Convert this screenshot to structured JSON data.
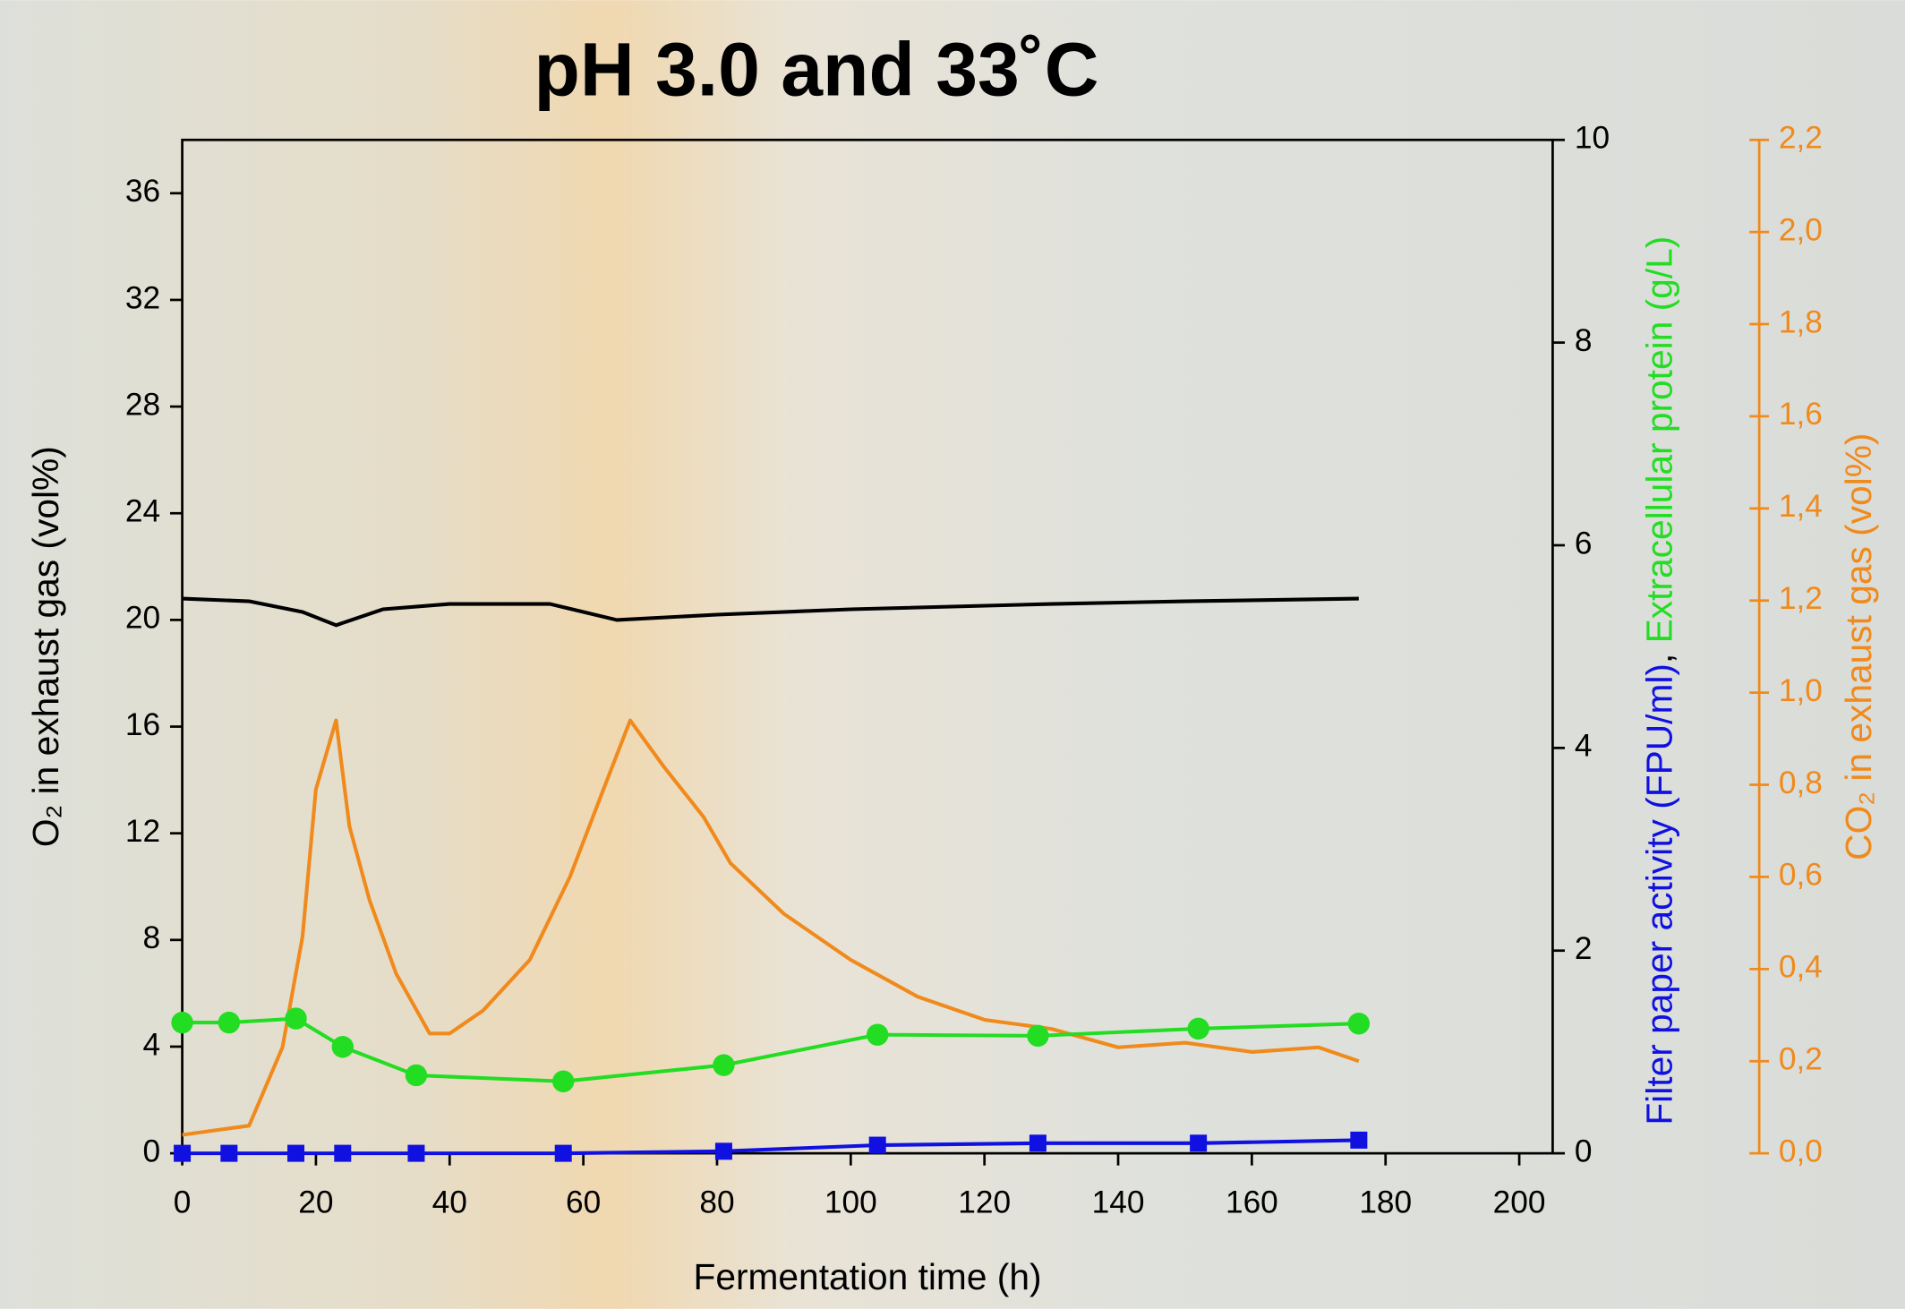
{
  "chart_data": {
    "type": "line",
    "title": "pH 3.0 and 33˚C",
    "x_label": "Fermentation time (h)",
    "y_label": "O₂ in exhaust gas (vol%)",
    "y2_label_parts": [
      {
        "text": "Filter paper activity (FPU/ml)",
        "color": "#1010e0"
      },
      {
        "text": ", ",
        "color": "#000000"
      },
      {
        "text": "Extracellular protein (g/L)",
        "color": "#22dd22"
      }
    ],
    "y3_label": "CO₂ in exhaust gas (vol%)",
    "y3_color": "#f08a1c",
    "xlim": [
      0,
      205
    ],
    "xticks": [
      0,
      20,
      40,
      60,
      80,
      100,
      120,
      140,
      160,
      180,
      200
    ],
    "ylim": [
      0,
      38
    ],
    "yticks": [
      0,
      4,
      8,
      12,
      16,
      20,
      24,
      28,
      32,
      36
    ],
    "y2lim": [
      0,
      10
    ],
    "y2ticks": [
      0,
      2,
      4,
      6,
      8,
      10
    ],
    "y3lim": [
      0,
      2.2
    ],
    "y3ticks": [
      {
        "value": 0,
        "label": "0,0"
      },
      {
        "value": 0.2,
        "label": "0,2"
      },
      {
        "value": 0.4,
        "label": "0,4"
      },
      {
        "value": 0.6,
        "label": "0,6"
      },
      {
        "value": 0.8,
        "label": "0,8"
      },
      {
        "value": 1.0,
        "label": "1,0"
      },
      {
        "value": 1.2,
        "label": "1,2"
      },
      {
        "value": 1.4,
        "label": "1,4"
      },
      {
        "value": 1.6,
        "label": "1,6"
      },
      {
        "value": 1.8,
        "label": "1,8"
      },
      {
        "value": 2.0,
        "label": "2,0"
      },
      {
        "value": 2.2,
        "label": "2,2"
      }
    ],
    "series": [
      {
        "name": "O2",
        "color": "#000000",
        "axis": "y",
        "marker": "none",
        "x": [
          0,
          10,
          18,
          23,
          30,
          40,
          55,
          65,
          80,
          100,
          130,
          150,
          176
        ],
        "values": [
          20.8,
          20.7,
          20.3,
          19.8,
          20.4,
          20.6,
          20.6,
          20.0,
          20.2,
          20.4,
          20.6,
          20.7,
          20.8
        ]
      },
      {
        "name": "CO2",
        "color": "#f08a1c",
        "axis": "y3",
        "marker": "none",
        "x": [
          0,
          10,
          15,
          18,
          20,
          23,
          25,
          28,
          32,
          37,
          40,
          45,
          52,
          58,
          63,
          67,
          72,
          78,
          82,
          90,
          100,
          110,
          120,
          130,
          140,
          150,
          160,
          170,
          176
        ],
        "values": [
          0.04,
          0.06,
          0.23,
          0.47,
          0.79,
          0.94,
          0.71,
          0.55,
          0.39,
          0.26,
          0.26,
          0.31,
          0.42,
          0.6,
          0.79,
          0.94,
          0.84,
          0.73,
          0.63,
          0.52,
          0.42,
          0.34,
          0.29,
          0.27,
          0.23,
          0.24,
          0.22,
          0.23,
          0.2
        ]
      },
      {
        "name": "Extracellular protein",
        "color": "#22dd22",
        "axis": "y2",
        "marker": "circle",
        "x": [
          0,
          7,
          17,
          24,
          35,
          57,
          81,
          104,
          128,
          152,
          176
        ],
        "values": [
          1.29,
          1.29,
          1.33,
          1.05,
          0.77,
          0.71,
          0.87,
          1.17,
          1.16,
          1.23,
          1.28
        ]
      },
      {
        "name": "Filter paper activity",
        "color": "#1010e0",
        "axis": "y2",
        "marker": "square",
        "x": [
          0,
          7,
          17,
          24,
          35,
          57,
          81,
          104,
          128,
          152,
          176
        ],
        "values": [
          0,
          0,
          0,
          0,
          0,
          0,
          0.02,
          0.08,
          0.1,
          0.1,
          0.13
        ]
      }
    ]
  }
}
